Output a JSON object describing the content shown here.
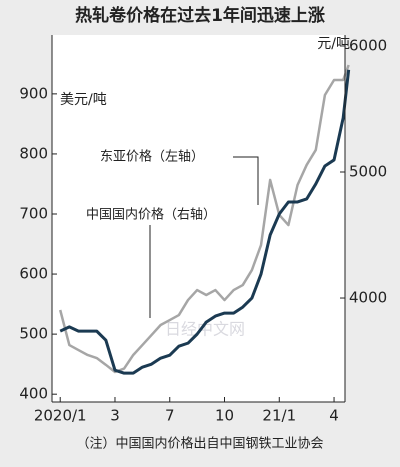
{
  "chart_data": {
    "type": "line",
    "title": "热轧卷价格在过去1年间迅速上涨",
    "y_label": "美元/吨",
    "y2_label": "元/吨",
    "note": "（注）中国国内价格出自中国钢铁工业协会",
    "watermark": "日经中文网",
    "x": [
      0,
      0.5,
      1,
      1.5,
      2,
      2.5,
      3,
      3.5,
      4,
      4.5,
      5,
      5.5,
      6,
      6.5,
      7,
      7.5,
      8,
      8.5,
      9,
      9.5,
      10,
      10.5,
      11,
      11.5,
      12,
      12.5,
      13,
      13.5,
      14,
      14.5,
      15,
      15.5,
      15.8
    ],
    "xlim": [
      -0.45,
      15.6
    ],
    "xticks": [
      {
        "value": 0,
        "label": "2020/1"
      },
      3,
      {
        "value": 6,
        "label": "7"
      },
      {
        "value": 9,
        "label": "10"
      },
      {
        "value": 12,
        "label": "21/1"
      },
      {
        "value": 15,
        "label": "4"
      }
    ],
    "ylim": [
      387,
      998
    ],
    "yticks": [
      400,
      500,
      600,
      700,
      800,
      900
    ],
    "y2lim": [
      3175,
      6087
    ],
    "y2ticks": [
      4000,
      5000,
      6000
    ],
    "series": [
      {
        "name": "东亚价格（左轴）",
        "color": "#1b3a52",
        "values": [
          505,
          512,
          505,
          505,
          505,
          490,
          440,
          435,
          435,
          445,
          450,
          460,
          465,
          480,
          485,
          500,
          520,
          530,
          535,
          535,
          545,
          560,
          600,
          665,
          700,
          720,
          720,
          725,
          750,
          780,
          790,
          860,
          940
        ]
      },
      {
        "name": "中国国内价格（右轴）",
        "color": "#a6a6a6",
        "axis": "y2",
        "values": [
          3905,
          3627,
          3587,
          3548,
          3524,
          3470,
          3413,
          3440,
          3548,
          3627,
          3706,
          3786,
          3825,
          3865,
          3984,
          4063,
          4024,
          4063,
          3984,
          4063,
          4103,
          4222,
          4420,
          4937,
          4659,
          4579,
          4897,
          5056,
          5175,
          5611,
          5730,
          5730,
          5849
        ]
      }
    ]
  }
}
